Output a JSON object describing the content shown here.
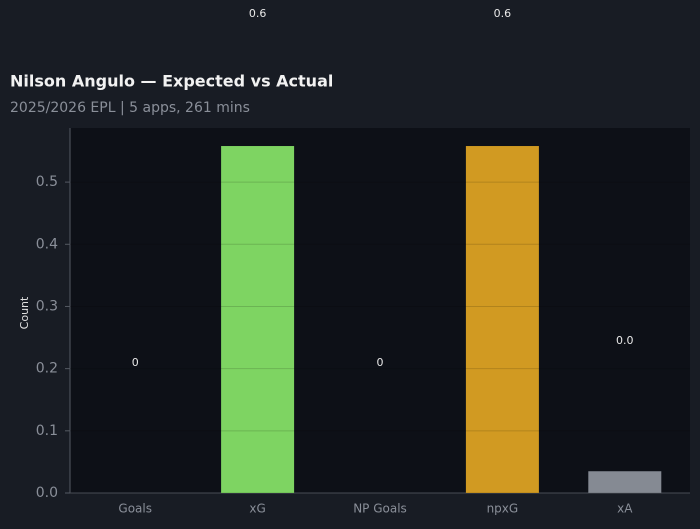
{
  "chart_data": {
    "type": "bar",
    "title": "Nilson Angulo — Expected vs Actual",
    "subtitle": "2025/2026 EPL | 5 apps, 261 mins",
    "y_label": "Count",
    "categories": [
      "Goals",
      "xG",
      "NP Goals",
      "npxG",
      "xA"
    ],
    "values": [
      0,
      0.558,
      0,
      0.558,
      0.035
    ],
    "value_labels": [
      "0",
      "0.6",
      "0",
      "0.6",
      "0.0"
    ],
    "colors": [
      "#7ed462",
      "#7ed462",
      "#d19a22",
      "#d19a22",
      "#858a93"
    ],
    "ylim": [
      0,
      0.587
    ],
    "yticks": [
      {
        "value": 0,
        "label": "0.0"
      },
      0.1,
      0.2,
      0.3,
      0.4,
      0.5
    ],
    "grid": true
  }
}
